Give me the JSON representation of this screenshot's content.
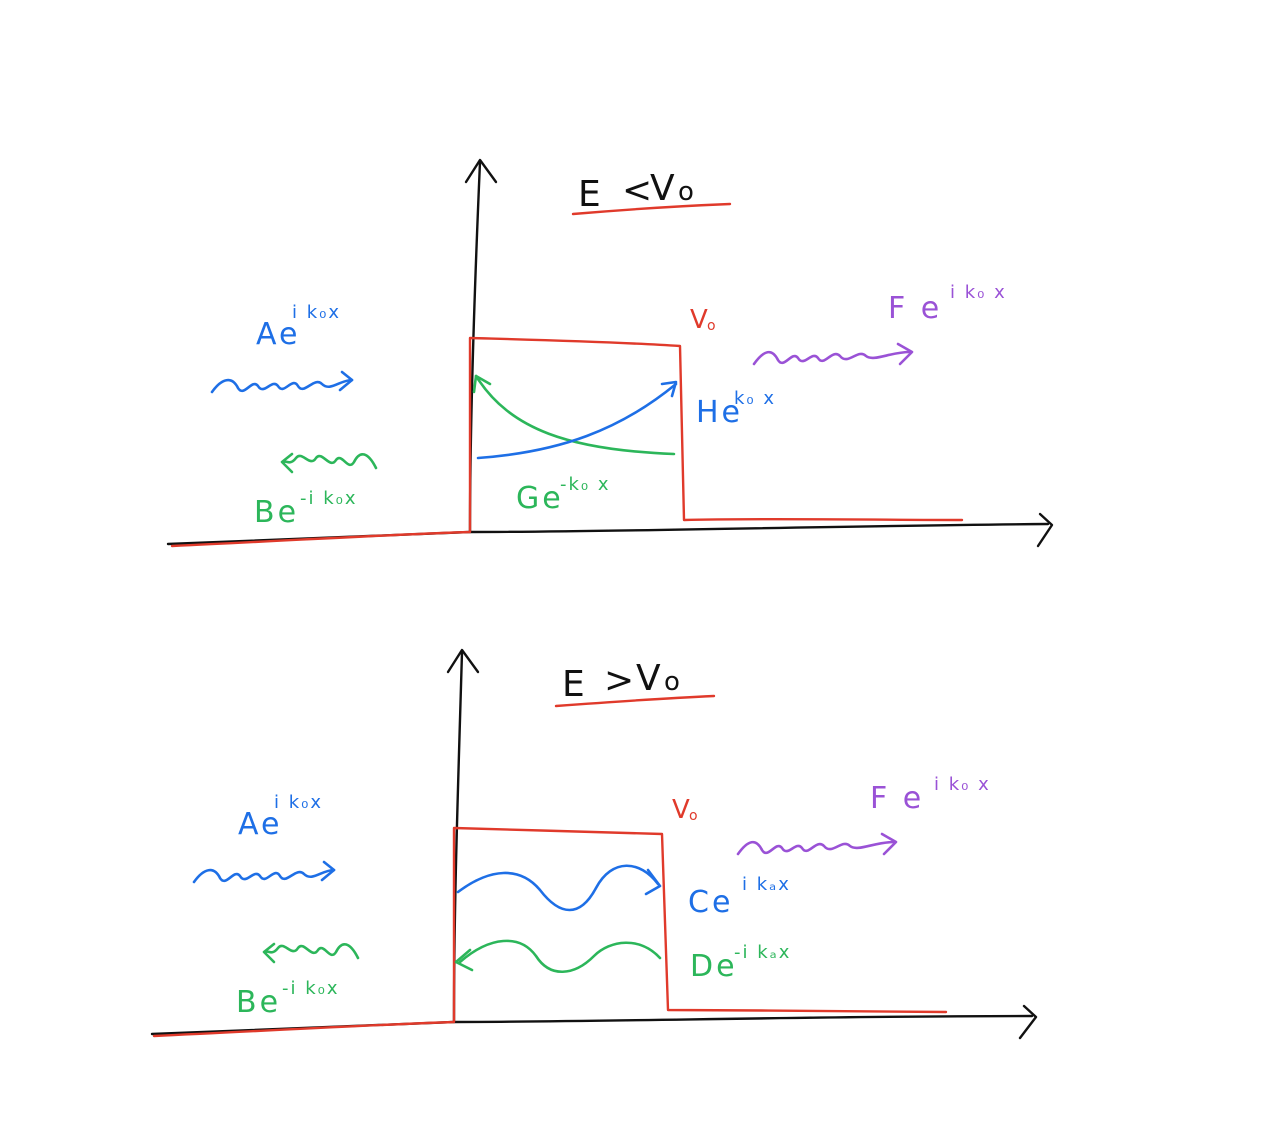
{
  "colors": {
    "axes": "#111111",
    "potential": "#e03a2b",
    "incident": "#1e6fe6",
    "reflected": "#2cb65a",
    "transmitted": "#9a52d6"
  },
  "panels": [
    {
      "title": {
        "left": "E",
        "rel": "<",
        "right": "V",
        "right_sub": "o"
      },
      "barrier_label": {
        "main": "V",
        "sub": "o"
      },
      "incident": {
        "base": "Ae",
        "exp": "i k₀x"
      },
      "reflected": {
        "base": "Be",
        "exp": "-i k₀x"
      },
      "transmitted": {
        "base": "F e",
        "exp": "i k₀ x"
      },
      "inside_right": {
        "base": "He",
        "exp": "k₀ x"
      },
      "inside_left": {
        "base": "Ge",
        "exp": "-k₀ x"
      }
    },
    {
      "title": {
        "left": "E",
        "rel": ">",
        "right": "V",
        "right_sub": "o"
      },
      "barrier_label": {
        "main": "V",
        "sub": "o"
      },
      "incident": {
        "base": "Ae",
        "exp": "i k₀x"
      },
      "reflected": {
        "base": "Be",
        "exp": "-i k₀x"
      },
      "transmitted": {
        "base": "F e",
        "exp": "i k₀ x"
      },
      "inside_right": {
        "base": "Ce",
        "exp": "i kₐx"
      },
      "inside_left": {
        "base": "De",
        "exp": "-i kₐx"
      }
    }
  ]
}
